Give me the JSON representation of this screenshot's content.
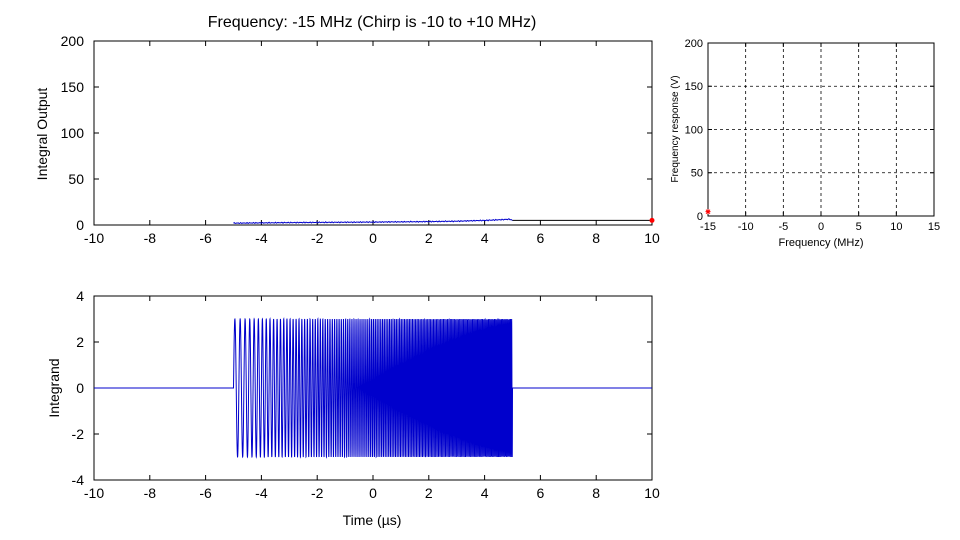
{
  "chart_data": [
    {
      "type": "line",
      "title": "Frequency: -15 MHz (Chirp is -10 to +10 MHz)",
      "xlabel": "",
      "ylabel": "Integral Output",
      "xlim": [
        -10,
        10
      ],
      "ylim": [
        0,
        200
      ],
      "xticks": [
        "-10",
        "-8",
        "-6",
        "-4",
        "-2",
        "0",
        "2",
        "4",
        "6",
        "8",
        "10"
      ],
      "yticks": [
        "0",
        "50",
        "100",
        "150",
        "200"
      ],
      "grid": false,
      "series": [
        {
          "color": "#0000cc",
          "x": [
            -5,
            -4,
            -3,
            -2,
            -1,
            0,
            1,
            2,
            3,
            4,
            4.5,
            4.9,
            5
          ],
          "y": [
            2.0,
            2.3,
            2.6,
            2.8,
            3.0,
            3.2,
            3.4,
            3.7,
            4.1,
            5.0,
            5.6,
            6.3,
            5.0
          ]
        },
        {
          "color": "#000000",
          "x": [
            5,
            10
          ],
          "y": [
            5.0,
            5.0
          ]
        }
      ],
      "marker": {
        "x": 10,
        "y": 5,
        "color": "#ff0000"
      }
    },
    {
      "type": "line",
      "title": "",
      "xlabel": "Time (µs)",
      "ylabel": "Integrand",
      "xlim": [
        -10,
        10
      ],
      "ylim": [
        -4,
        4
      ],
      "xticks": [
        "-10",
        "-8",
        "-6",
        "-4",
        "-2",
        "0",
        "2",
        "4",
        "6",
        "8",
        "10"
      ],
      "yticks": [
        "-4",
        "-2",
        "0",
        "2",
        "4"
      ],
      "grid": false,
      "series": [
        {
          "color": "#0000cc",
          "signal": "chirp",
          "t_start": -5,
          "t_end": 5,
          "f_start_mhz": -10,
          "f_end_mhz": 10,
          "offset_mhz": -15,
          "amplitude": 3.0,
          "outside_value": 0
        }
      ]
    },
    {
      "type": "scatter",
      "title": "",
      "xlabel": "Frequency (MHz)",
      "ylabel": "Frequency response (V)",
      "xlim": [
        -15,
        15
      ],
      "ylim": [
        0,
        200
      ],
      "xticks": [
        "-15",
        "-10",
        "-5",
        "0",
        "5",
        "10",
        "15"
      ],
      "yticks": [
        "0",
        "50",
        "100",
        "150",
        "200"
      ],
      "grid": true,
      "points": [
        {
          "x": -15,
          "y": 5,
          "color": "#ff0000"
        }
      ]
    }
  ]
}
